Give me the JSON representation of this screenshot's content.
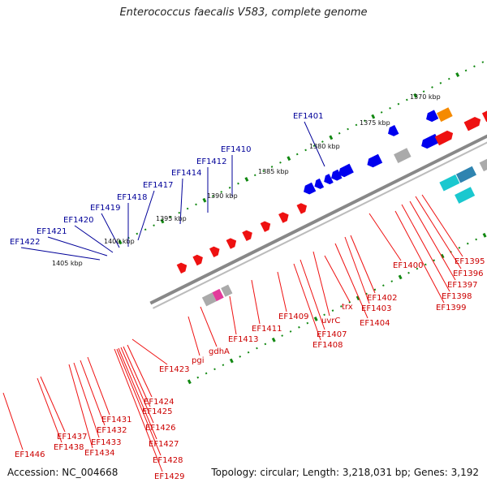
{
  "title": "Enterococcus faecalis V583, complete genome",
  "footer": {
    "accession": "Accession: NC_004668",
    "topology": "Topology: circular; Length: 3,218,031 bp; Genes: 3,192"
  },
  "colors": {
    "backbone": "#888888",
    "forward_gene": "#ee1111",
    "reverse_gene": "#0000ee",
    "tick": "#118811",
    "label_red": "#cc0000",
    "label_blue": "#000099"
  },
  "kbp_ticks": [
    "1370 kbp",
    "1375 kbp",
    "1380 kbp",
    "1385 kbp",
    "1390 kbp",
    "1395 kbp",
    "1400 kbp",
    "1405 kbp"
  ],
  "upper_labels": [
    "EF1401",
    "EF1410",
    "EF1412",
    "EF1414",
    "EF1417",
    "EF1418",
    "EF1419",
    "EF1420",
    "EF1421",
    "EF1422"
  ],
  "lower_labels": [
    "EF1395",
    "EF1396",
    "EF1397",
    "EF1398",
    "EF1399",
    "EF1400",
    "EF1402",
    "EF1403",
    "EF1404",
    "trx",
    "uvrC",
    "EF1407",
    "EF1408",
    "EF1409",
    "EF1411",
    "EF1413",
    "gdhA",
    "pgi",
    "EF1423",
    "EF1424",
    "EF1425",
    "EF1426",
    "EF1427",
    "EF1428",
    "EF1429",
    "EF1431",
    "EF1432",
    "EF1433",
    "EF1434",
    "EF1437",
    "EF1438",
    "EF1446"
  ]
}
